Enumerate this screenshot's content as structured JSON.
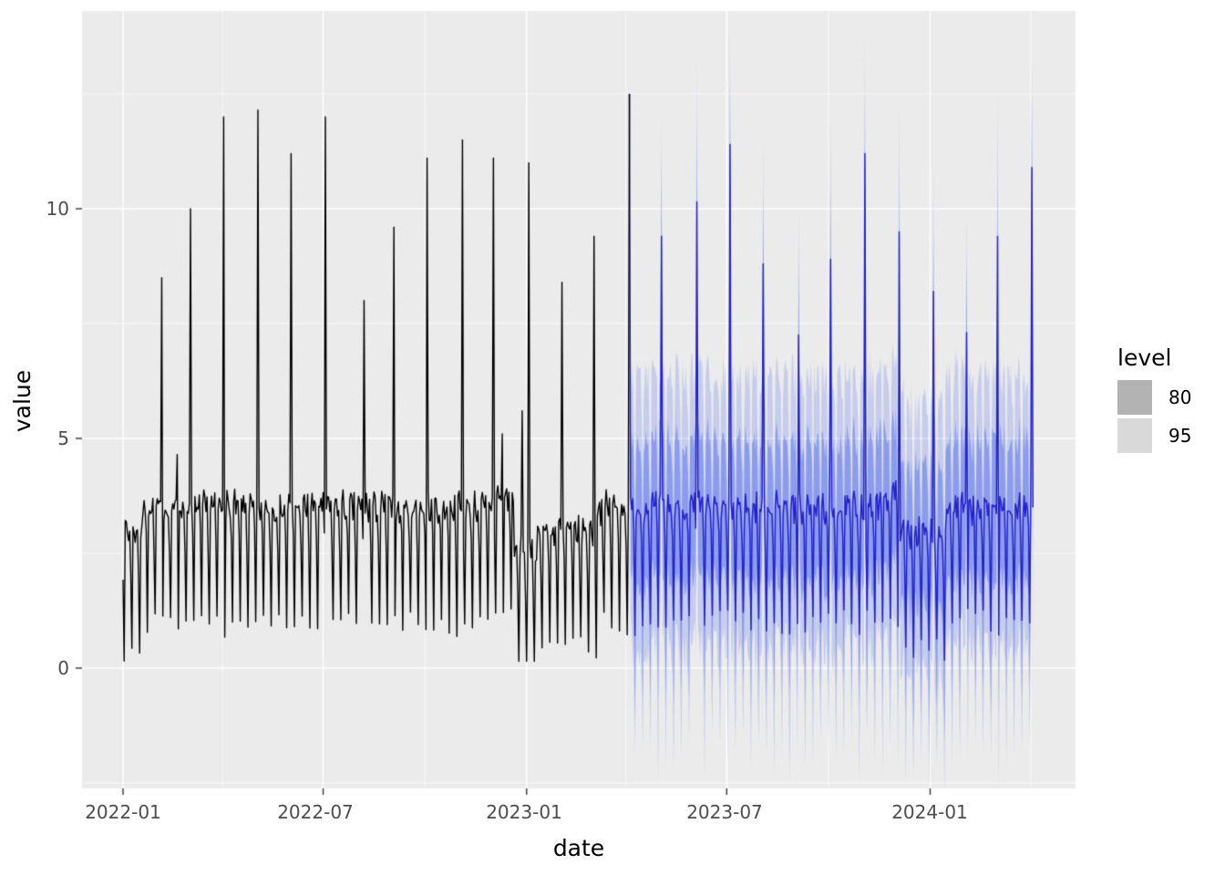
{
  "chart_data": {
    "type": "line",
    "title": "",
    "xlabel": "date",
    "ylabel": "value",
    "ylim": [
      -2.6,
      14.3
    ],
    "x_domain": [
      "2021-11-25",
      "2024-05-10"
    ],
    "grid": true,
    "legend_position": "right",
    "seed": 7,
    "colors": {
      "panel_bg": "#EBEBEB",
      "grid": "#FFFFFF",
      "tick": "#333333",
      "tick_label": "#4D4D4D",
      "axis_title": "#000000"
    },
    "axis": {
      "x_ticks": [
        {
          "label": "2022-01",
          "date": "2022-01-01"
        },
        {
          "label": "2022-07",
          "date": "2022-07-01"
        },
        {
          "label": "2023-01",
          "date": "2023-01-01"
        },
        {
          "label": "2023-07",
          "date": "2023-07-01"
        },
        {
          "label": "2024-01",
          "date": "2024-01-01"
        }
      ],
      "x_minor": [
        "2022-04-01",
        "2022-10-01",
        "2023-04-01",
        "2023-10-01",
        "2024-04-01"
      ],
      "y_ticks": [
        {
          "label": "0",
          "value": 0
        },
        {
          "label": "5",
          "value": 5
        },
        {
          "label": "10",
          "value": 10
        }
      ],
      "y_minor": [
        -2.5,
        2.5,
        7.5,
        12.5
      ]
    },
    "legend": {
      "title": "level",
      "entries": [
        {
          "label": "80",
          "fill": "#b3b3b3"
        },
        {
          "label": "95",
          "fill": "#d9d9d9"
        }
      ]
    },
    "series": [
      {
        "name": "historical",
        "role": "observed",
        "color": "#000000",
        "start": "2022-01-01",
        "end": "2023-04-04",
        "weekly_pattern": [
          0.95,
          3.5,
          3.62,
          3.48,
          3.38,
          3.55,
          2.75
        ],
        "noise": 0.28,
        "level_shifts": [
          {
            "start": "2022-01-01",
            "end": "2022-01-18",
            "offset": -0.55
          },
          {
            "start": "2022-12-01",
            "end": "2022-12-20",
            "offset": 0.25
          },
          {
            "start": "2022-12-21",
            "end": "2023-01-10",
            "offset": -1.0
          },
          {
            "start": "2023-01-11",
            "end": "2023-03-05",
            "offset": -0.5
          }
        ],
        "spikes": [
          [
            "2022-02-05",
            8.5
          ],
          [
            "2022-02-19",
            4.65
          ],
          [
            "2022-03-03",
            10.0
          ],
          [
            "2022-04-02",
            12.0
          ],
          [
            "2022-05-03",
            12.15
          ],
          [
            "2022-06-02",
            11.2
          ],
          [
            "2022-07-03",
            12.0
          ],
          [
            "2022-08-07",
            8.0
          ],
          [
            "2022-09-03",
            9.6
          ],
          [
            "2022-10-03",
            11.1
          ],
          [
            "2022-11-04",
            11.5
          ],
          [
            "2022-12-02",
            11.1
          ],
          [
            "2022-12-10",
            5.1
          ],
          [
            "2022-12-28",
            5.6
          ],
          [
            "2023-01-03",
            11.0
          ],
          [
            "2023-02-02",
            8.4
          ],
          [
            "2023-03-03",
            9.4
          ],
          [
            "2023-04-04",
            12.5
          ]
        ]
      },
      {
        "name": "forecast",
        "role": "point-forecast",
        "color": "#2222CF",
        "start": "2023-04-05",
        "end": "2024-04-03",
        "weekly_pattern": [
          1.0,
          3.45,
          3.6,
          3.5,
          3.4,
          3.55,
          2.8
        ],
        "noise": 0.3,
        "level_shifts": [
          {
            "start": "2023-11-18",
            "end": "2023-12-02",
            "offset": 0.3
          },
          {
            "start": "2023-12-05",
            "end": "2024-01-15",
            "offset": -0.55
          }
        ],
        "spikes": [
          [
            "2023-05-03",
            9.4
          ],
          [
            "2023-06-04",
            10.15
          ],
          [
            "2023-07-04",
            11.4
          ],
          [
            "2023-08-03",
            8.8
          ],
          [
            "2023-09-04",
            7.25
          ],
          [
            "2023-10-03",
            8.9
          ],
          [
            "2023-11-03",
            11.2
          ],
          [
            "2023-12-04",
            9.5
          ],
          [
            "2024-01-04",
            8.2
          ],
          [
            "2024-02-03",
            7.3
          ],
          [
            "2024-03-02",
            9.4
          ],
          [
            "2024-04-02",
            10.9
          ]
        ],
        "intervals": [
          {
            "level": "80",
            "margin_up": 1.5,
            "margin_down": 1.6,
            "fill": "rgba(68,98,240,0.45)"
          },
          {
            "level": "95",
            "margin_up": 2.85,
            "margin_down": 2.95,
            "fill": "rgba(68,98,240,0.22)"
          }
        ],
        "hi_cap": 13.8
      }
    ]
  }
}
